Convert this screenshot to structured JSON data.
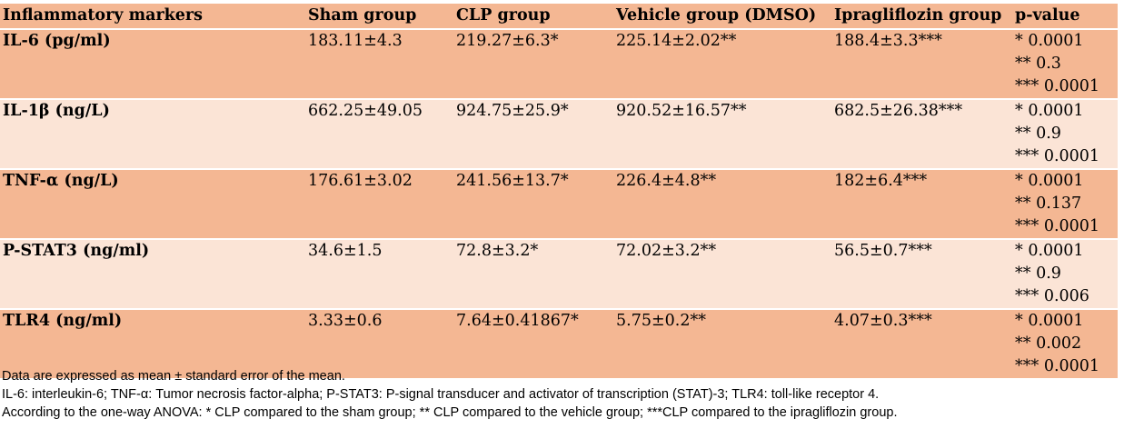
{
  "table": {
    "headers": [
      "Inflammatory markers",
      "Sham group",
      "CLP group",
      "Vehicle group (DMSO)",
      "Ipragliflozin group",
      "p-value"
    ],
    "rows": [
      {
        "marker": "IL-6 (pg/ml)",
        "sham": "183.11±4.3",
        "clp": "219.27±6.3*",
        "vehicle": "225.14±2.02**",
        "ipragliflozin": "188.4±3.3***",
        "p_values": [
          "* 0.0001",
          "** 0.3",
          "*** 0.0001"
        ]
      },
      {
        "marker": "IL-1β (ng/L)",
        "sham": "662.25±49.05",
        "clp": "924.75±25.9*",
        "vehicle": "920.52±16.57**",
        "ipragliflozin": "682.5±26.38***",
        "p_values": [
          "* 0.0001",
          "** 0.9",
          "*** 0.0001"
        ]
      },
      {
        "marker": "TNF-α (ng/L)",
        "sham": "176.61±3.02",
        "clp": "241.56±13.7*",
        "vehicle": "226.4±4.8**",
        "ipragliflozin": "182±6.4***",
        "p_values": [
          "* 0.0001",
          "** 0.137",
          "*** 0.0001"
        ]
      },
      {
        "marker": "P-STAT3 (ng/ml)",
        "sham": "34.6±1.5",
        "clp": "72.8±3.2*",
        "vehicle": "72.02±3.2**",
        "ipragliflozin": "56.5±0.7***",
        "p_values": [
          "* 0.0001",
          "** 0.9",
          "*** 0.006"
        ]
      },
      {
        "marker": "TLR4 (ng/ml)",
        "sham": "3.33±0.6",
        "clp": "7.64±0.41867*",
        "vehicle": "5.75±0.2**",
        "ipragliflozin": "4.07±0.3***",
        "p_values": [
          "* 0.0001",
          "** 0.002",
          "*** 0.0001"
        ]
      }
    ]
  },
  "notes": [
    "Data are expressed as mean ± standard error of the mean.",
    "IL-6: interleukin-6; TNF-α: Tumor necrosis factor-alpha; P-STAT3: P-signal transducer and activator of transcription (STAT)-3;  TLR4:  toll-like receptor 4.",
    "According to the one-way ANOVA: * CLP compared to the sham group; ** CLP compared to the vehicle group; ***CLP compared to the  ipragliflozin group."
  ],
  "colors": {
    "header_row": "#f4b793",
    "dark_row": "#f4b793",
    "light_row": "#fbe4d6"
  }
}
